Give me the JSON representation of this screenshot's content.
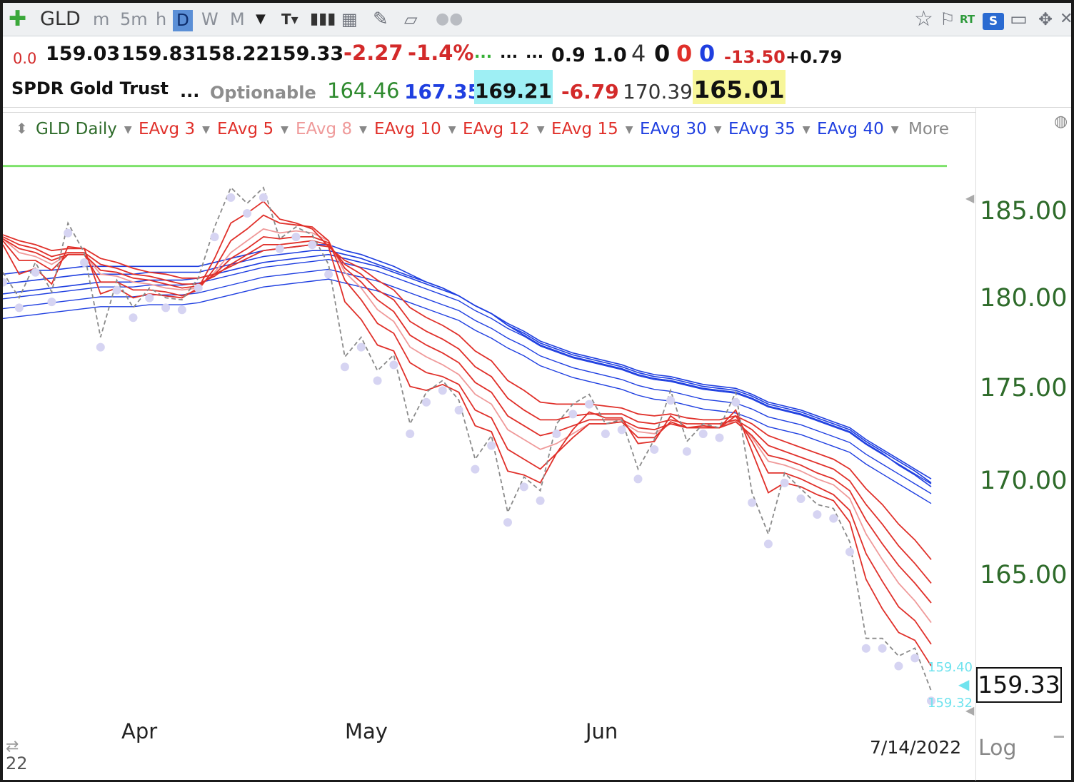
{
  "toolbar": {
    "symbol": "GLD",
    "periods": [
      "m",
      "5m",
      "h",
      "D",
      "W",
      "M"
    ],
    "active_period": "D",
    "rt_label": "RT",
    "s_label": "S"
  },
  "quote_row1": {
    "v0": "0.0",
    "open": "159.03",
    "high": "159.83",
    "low": "158.22",
    "last": "159.33",
    "change": "-2.27",
    "change_pct": "-1.4%",
    "dots1": "...",
    "dots2": "...",
    "dots3": "...",
    "v1": "0.9",
    "v2": "1.0",
    "c1": "4",
    "c2": "0",
    "c3": "0",
    "c4": "0",
    "v3": "-13.50",
    "v4": "+0.79"
  },
  "quote_row2": {
    "name": "SPDR Gold Trust",
    "dots": "...",
    "optionable": "Optionable",
    "p1": "164.46",
    "p2": "167.35",
    "p3": "169.21",
    "p4": "-6.79",
    "p5": "170.39",
    "p6": "165.01"
  },
  "legend": {
    "chart_name": "GLD Daily",
    "items": [
      "EAvg 3",
      "EAvg 5",
      "EAvg 8",
      "EAvg 10",
      "EAvg 12",
      "EAvg 15",
      "EAvg 30",
      "EAvg 35",
      "EAvg 40"
    ],
    "more": "More"
  },
  "colors": {
    "short_ema": "#e0302a",
    "ema8": "#ef9a9a",
    "long_ema": "#1f3fe0",
    "price": "#8a8a8a",
    "green_line": "#7ee26b",
    "axis_text": "#2e6b2a"
  },
  "axis": {
    "y_ticks": [
      "185.00",
      "180.00",
      "175.00",
      "170.00",
      "165.00"
    ],
    "x_ticks": [
      "Apr",
      "May",
      "Jun"
    ],
    "date": "7/14/2022",
    "log": "Log",
    "last_price": "159.33",
    "tag_upper": "159.40",
    "tag_lower": "159.32",
    "corner_label": "22"
  },
  "chart_data": {
    "type": "line",
    "title": "GLD Daily",
    "ylim": [
      158,
      187
    ],
    "green_level": 186,
    "x_labels": [
      "Apr",
      "May",
      "Jun"
    ],
    "close": [
      180.6,
      179.3,
      181.1,
      179.6,
      183.1,
      181.6,
      177.3,
      180.2,
      178.8,
      179.8,
      179.3,
      179.2,
      180.3,
      182.9,
      184.9,
      184.1,
      184.9,
      182.3,
      182.9,
      182.5,
      181.0,
      176.3,
      177.3,
      175.6,
      176.4,
      172.9,
      174.5,
      175.1,
      174.1,
      171.1,
      172.3,
      168.4,
      170.2,
      169.5,
      172.9,
      173.9,
      174.4,
      172.9,
      173.1,
      170.6,
      172.1,
      174.6,
      172.0,
      172.9,
      172.7,
      174.5,
      169.4,
      167.3,
      170.4,
      169.6,
      168.8,
      168.6,
      166.9,
      162.0,
      162.0,
      161.1,
      161.5,
      159.33
    ],
    "ema_short": [
      {
        "name": "EAvg 3",
        "values": [
          182.0,
          180.5,
          180.8,
          180.0,
          181.9,
          181.8,
          179.5,
          179.8,
          179.3,
          179.5,
          179.4,
          179.3,
          179.8,
          181.3,
          183.1,
          183.6,
          184.2,
          183.3,
          183.1,
          182.8,
          181.9,
          179.1,
          178.2,
          176.9,
          176.6,
          174.8,
          174.6,
          174.9,
          174.5,
          172.8,
          172.5,
          170.5,
          170.3,
          169.9,
          171.4,
          172.6,
          173.5,
          173.2,
          173.2,
          171.9,
          172.0,
          173.3,
          172.7,
          172.8,
          172.7,
          173.6,
          171.5,
          169.4,
          169.9,
          169.7,
          169.3,
          169.0,
          167.9,
          165.0,
          163.5,
          162.3,
          161.9,
          160.6
        ]
      },
      {
        "name": "EAvg 5",
        "values": [
          182.2,
          181.2,
          181.2,
          180.7,
          181.5,
          181.5,
          180.1,
          180.1,
          179.7,
          179.7,
          179.6,
          179.4,
          179.7,
          180.8,
          182.2,
          182.8,
          183.5,
          183.1,
          183.0,
          182.9,
          182.2,
          180.2,
          179.2,
          178.0,
          177.5,
          176.0,
          175.5,
          175.3,
          174.9,
          173.6,
          173.2,
          171.6,
          171.1,
          170.6,
          171.4,
          172.2,
          172.9,
          172.9,
          173.0,
          172.2,
          172.2,
          173.0,
          172.7,
          172.7,
          172.7,
          173.3,
          172.0,
          170.4,
          170.4,
          170.1,
          169.7,
          169.3,
          168.5,
          166.3,
          164.9,
          163.6,
          162.9,
          161.7
        ]
      },
      {
        "name": "EAvg 10",
        "values": [
          182.3,
          181.8,
          181.6,
          181.2,
          181.5,
          181.5,
          180.7,
          180.6,
          180.3,
          180.2,
          180.0,
          179.8,
          179.9,
          180.5,
          181.3,
          181.8,
          182.4,
          182.3,
          182.4,
          182.4,
          182.1,
          180.8,
          180.1,
          179.2,
          178.6,
          177.4,
          176.9,
          176.5,
          176.0,
          175.0,
          174.5,
          173.3,
          172.8,
          172.3,
          172.5,
          172.8,
          173.1,
          173.1,
          173.1,
          172.7,
          172.6,
          172.9,
          172.7,
          172.7,
          172.7,
          173.0,
          172.3,
          171.3,
          171.1,
          170.8,
          170.4,
          170.1,
          169.5,
          168.0,
          166.8,
          165.7,
          164.8,
          163.8
        ]
      },
      {
        "name": "EAvg 12",
        "values": [
          182.4,
          182.0,
          181.8,
          181.4,
          181.6,
          181.6,
          181.0,
          180.8,
          180.5,
          180.4,
          180.2,
          180.0,
          180.0,
          180.4,
          181.0,
          181.5,
          182.0,
          182.0,
          182.1,
          182.2,
          182.0,
          181.0,
          180.5,
          179.7,
          179.2,
          178.1,
          177.6,
          177.2,
          176.7,
          175.8,
          175.3,
          174.2,
          173.6,
          173.1,
          173.1,
          173.3,
          173.4,
          173.4,
          173.4,
          173.0,
          172.9,
          173.1,
          172.9,
          172.9,
          172.9,
          173.1,
          172.6,
          171.8,
          171.5,
          171.2,
          170.9,
          170.6,
          170.0,
          168.8,
          167.8,
          166.7,
          165.8,
          164.8
        ]
      },
      {
        "name": "EAvg 15",
        "values": [
          182.5,
          182.2,
          182.0,
          181.7,
          181.8,
          181.8,
          181.3,
          181.1,
          180.8,
          180.6,
          180.5,
          180.3,
          180.3,
          180.5,
          180.9,
          181.3,
          181.7,
          181.8,
          181.9,
          182.0,
          181.9,
          181.2,
          180.8,
          180.2,
          179.7,
          178.8,
          178.3,
          177.9,
          177.4,
          176.6,
          176.1,
          175.1,
          174.6,
          174.0,
          173.9,
          173.9,
          173.9,
          173.8,
          173.7,
          173.4,
          173.3,
          173.4,
          173.2,
          173.1,
          173.1,
          173.3,
          172.9,
          172.3,
          172.0,
          171.7,
          171.4,
          171.1,
          170.6,
          169.6,
          168.8,
          167.8,
          167.0,
          166.0
        ]
      }
    ],
    "ema_8": {
      "name": "EAvg 8",
      "values": [
        182.3,
        181.6,
        181.4,
        181.0,
        181.5,
        181.5,
        180.5,
        180.4,
        180.1,
        180.0,
        179.8,
        179.7,
        179.8,
        180.6,
        181.6,
        182.2,
        182.8,
        182.6,
        182.7,
        182.6,
        182.2,
        180.6,
        179.8,
        178.7,
        178.1,
        176.8,
        176.3,
        175.9,
        175.4,
        174.4,
        173.9,
        172.6,
        172.1,
        171.6,
        171.9,
        172.4,
        172.9,
        172.9,
        173.0,
        172.5,
        172.4,
        172.9,
        172.7,
        172.7,
        172.7,
        173.1,
        172.2,
        171.0,
        170.8,
        170.5,
        170.1,
        169.8,
        169.1,
        167.3,
        166.0,
        164.8,
        163.9,
        162.8
      ]
    },
    "ema_long": [
      {
        "name": "EAvg 30",
        "values": [
          180.5,
          180.6,
          180.7,
          180.7,
          180.8,
          180.9,
          180.9,
          180.9,
          180.9,
          180.9,
          180.9,
          180.9,
          180.9,
          181.1,
          181.3,
          181.5,
          181.7,
          181.8,
          181.9,
          182.0,
          182.0,
          181.7,
          181.5,
          181.2,
          180.9,
          180.5,
          180.1,
          179.8,
          179.4,
          178.9,
          178.5,
          177.9,
          177.4,
          176.9,
          176.6,
          176.3,
          176.1,
          175.9,
          175.7,
          175.4,
          175.2,
          175.1,
          174.9,
          174.7,
          174.6,
          174.5,
          174.2,
          173.8,
          173.6,
          173.4,
          173.1,
          172.8,
          172.5,
          171.9,
          171.4,
          170.8,
          170.3,
          169.7
        ]
      },
      {
        "name": "EAvg 35",
        "values": [
          180.0,
          180.1,
          180.2,
          180.3,
          180.4,
          180.5,
          180.5,
          180.5,
          180.5,
          180.6,
          180.6,
          180.6,
          180.6,
          180.8,
          181.0,
          181.2,
          181.4,
          181.5,
          181.6,
          181.7,
          181.7,
          181.5,
          181.3,
          181.0,
          180.7,
          180.4,
          180.1,
          179.8,
          179.4,
          178.9,
          178.5,
          177.9,
          177.5,
          177.0,
          176.7,
          176.4,
          176.2,
          176.0,
          175.8,
          175.5,
          175.3,
          175.2,
          175.0,
          174.8,
          174.7,
          174.6,
          174.3,
          173.9,
          173.7,
          173.5,
          173.2,
          172.9,
          172.6,
          172.0,
          171.5,
          171.0,
          170.5,
          169.9
        ]
      },
      {
        "name": "EAvg 40",
        "values": [
          179.5,
          179.6,
          179.7,
          179.8,
          179.9,
          180.0,
          180.1,
          180.1,
          180.1,
          180.2,
          180.2,
          180.2,
          180.3,
          180.5,
          180.7,
          180.9,
          181.1,
          181.2,
          181.3,
          181.4,
          181.5,
          181.3,
          181.1,
          180.9,
          180.6,
          180.3,
          180.0,
          179.7,
          179.4,
          178.9,
          178.5,
          178.0,
          177.6,
          177.1,
          176.8,
          176.5,
          176.3,
          176.1,
          175.9,
          175.6,
          175.4,
          175.3,
          175.1,
          174.9,
          174.8,
          174.7,
          174.4,
          174.0,
          173.8,
          173.6,
          173.3,
          173.0,
          172.7,
          172.1,
          171.6,
          171.1,
          170.6,
          170.1
        ]
      }
    ]
  }
}
